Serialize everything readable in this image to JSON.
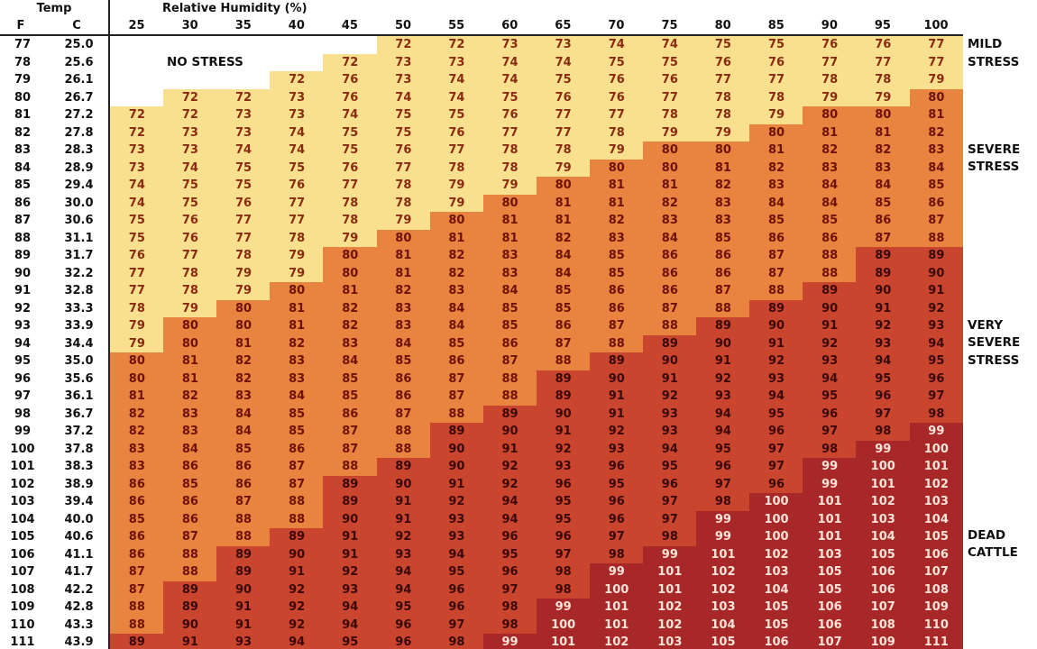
{
  "chart_data": {
    "type": "heatmap",
    "headers": {
      "temp": "Temp",
      "f": "F",
      "c": "C",
      "humidity": "Relative Humidity (%)"
    },
    "humidity": [
      25,
      30,
      35,
      40,
      45,
      50,
      55,
      60,
      65,
      70,
      75,
      80,
      85,
      90,
      95,
      100
    ],
    "temp_f": [
      77,
      78,
      79,
      80,
      81,
      82,
      83,
      84,
      85,
      86,
      87,
      88,
      89,
      90,
      91,
      92,
      93,
      94,
      95,
      96,
      97,
      98,
      99,
      100,
      101,
      102,
      103,
      104,
      105,
      106,
      107,
      108,
      109,
      110,
      111
    ],
    "temp_c": [
      "25.0",
      "25.6",
      "26.1",
      "26.7",
      "27.2",
      "27.8",
      "28.3",
      "28.9",
      "29.4",
      "30.0",
      "30.6",
      "31.1",
      "31.7",
      "32.2",
      "32.8",
      "33.3",
      "33.9",
      "34.4",
      "35.0",
      "35.6",
      "36.1",
      "36.7",
      "37.2",
      "37.8",
      "38.3",
      "38.9",
      "39.4",
      "40.0",
      "40.6",
      "41.1",
      "41.7",
      "42.2",
      "42.8",
      "43.3",
      "43.9"
    ],
    "values": [
      [
        null,
        null,
        null,
        null,
        null,
        72,
        72,
        73,
        73,
        74,
        74,
        75,
        75,
        76,
        76,
        77
      ],
      [
        null,
        null,
        null,
        null,
        72,
        73,
        73,
        74,
        74,
        75,
        75,
        76,
        76,
        77,
        77,
        77
      ],
      [
        null,
        null,
        null,
        72,
        76,
        73,
        74,
        74,
        75,
        76,
        76,
        77,
        77,
        78,
        78,
        79
      ],
      [
        null,
        72,
        72,
        73,
        76,
        74,
        74,
        75,
        76,
        76,
        77,
        78,
        78,
        79,
        79,
        80
      ],
      [
        72,
        72,
        73,
        73,
        74,
        75,
        75,
        76,
        77,
        77,
        78,
        78,
        79,
        80,
        80,
        81
      ],
      [
        72,
        73,
        73,
        74,
        75,
        75,
        76,
        77,
        77,
        78,
        79,
        79,
        80,
        81,
        81,
        82
      ],
      [
        73,
        73,
        74,
        74,
        75,
        76,
        77,
        78,
        78,
        79,
        80,
        80,
        81,
        82,
        82,
        83
      ],
      [
        73,
        74,
        75,
        75,
        76,
        77,
        78,
        78,
        79,
        80,
        80,
        81,
        82,
        83,
        83,
        84
      ],
      [
        74,
        75,
        75,
        76,
        77,
        78,
        79,
        79,
        80,
        81,
        81,
        82,
        83,
        84,
        84,
        85
      ],
      [
        74,
        75,
        76,
        77,
        78,
        78,
        79,
        80,
        81,
        81,
        82,
        83,
        84,
        84,
        85,
        86
      ],
      [
        75,
        76,
        77,
        77,
        78,
        79,
        80,
        81,
        81,
        82,
        83,
        83,
        85,
        85,
        86,
        87
      ],
      [
        75,
        76,
        77,
        78,
        79,
        80,
        81,
        81,
        82,
        83,
        84,
        85,
        86,
        86,
        87,
        88
      ],
      [
        76,
        77,
        78,
        79,
        80,
        81,
        82,
        83,
        84,
        85,
        86,
        86,
        87,
        88,
        89,
        89
      ],
      [
        77,
        78,
        79,
        79,
        80,
        81,
        82,
        83,
        84,
        85,
        86,
        86,
        87,
        88,
        89,
        90
      ],
      [
        77,
        78,
        79,
        80,
        81,
        82,
        83,
        84,
        85,
        86,
        86,
        87,
        88,
        89,
        90,
        91
      ],
      [
        78,
        79,
        80,
        81,
        82,
        83,
        84,
        85,
        85,
        86,
        87,
        88,
        89,
        90,
        91,
        92
      ],
      [
        79,
        80,
        80,
        81,
        82,
        83,
        84,
        85,
        86,
        87,
        88,
        89,
        90,
        91,
        92,
        93
      ],
      [
        79,
        80,
        81,
        82,
        83,
        84,
        85,
        86,
        87,
        88,
        89,
        90,
        91,
        92,
        93,
        94
      ],
      [
        80,
        81,
        82,
        83,
        84,
        85,
        86,
        87,
        88,
        89,
        90,
        91,
        92,
        93,
        94,
        95
      ],
      [
        80,
        81,
        82,
        83,
        85,
        86,
        87,
        88,
        89,
        90,
        91,
        92,
        93,
        94,
        95,
        96
      ],
      [
        81,
        82,
        83,
        84,
        85,
        86,
        87,
        88,
        89,
        91,
        92,
        93,
        94,
        95,
        96,
        97
      ],
      [
        82,
        83,
        84,
        85,
        86,
        87,
        88,
        89,
        90,
        91,
        93,
        94,
        95,
        96,
        97,
        98
      ],
      [
        82,
        83,
        84,
        85,
        87,
        88,
        89,
        90,
        91,
        92,
        93,
        94,
        96,
        97,
        98,
        99
      ],
      [
        83,
        84,
        85,
        86,
        87,
        88,
        90,
        91,
        92,
        93,
        94,
        95,
        97,
        98,
        99,
        100
      ],
      [
        83,
        86,
        86,
        87,
        88,
        89,
        90,
        92,
        93,
        96,
        95,
        96,
        97,
        99,
        100,
        101
      ],
      [
        86,
        85,
        86,
        87,
        89,
        90,
        91,
        92,
        96,
        95,
        96,
        97,
        96,
        99,
        101,
        102
      ],
      [
        86,
        86,
        87,
        88,
        89,
        91,
        92,
        94,
        95,
        96,
        97,
        98,
        100,
        101,
        102,
        103
      ],
      [
        85,
        86,
        88,
        88,
        90,
        91,
        93,
        94,
        95,
        96,
        97,
        99,
        100,
        101,
        103,
        104
      ],
      [
        86,
        87,
        88,
        89,
        91,
        92,
        93,
        96,
        96,
        97,
        98,
        99,
        100,
        101,
        104,
        105
      ],
      [
        86,
        88,
        89,
        90,
        91,
        93,
        94,
        95,
        97,
        98,
        99,
        101,
        102,
        103,
        105,
        106
      ],
      [
        87,
        88,
        89,
        91,
        92,
        94,
        95,
        96,
        98,
        99,
        101,
        102,
        103,
        105,
        106,
        107
      ],
      [
        87,
        89,
        90,
        92,
        93,
        94,
        96,
        97,
        98,
        100,
        101,
        102,
        104,
        105,
        106,
        108
      ],
      [
        88,
        89,
        91,
        92,
        94,
        95,
        96,
        98,
        99,
        101,
        102,
        103,
        105,
        106,
        107,
        109
      ],
      [
        88,
        90,
        91,
        92,
        94,
        96,
        97,
        98,
        100,
        101,
        102,
        104,
        105,
        106,
        108,
        110
      ],
      [
        89,
        91,
        93,
        94,
        95,
        96,
        98,
        99,
        101,
        102,
        103,
        105,
        106,
        107,
        109,
        111
      ]
    ],
    "zones": [
      {
        "label": "NO STRESS",
        "color": "#ffffff"
      },
      {
        "label": "MILD STRESS",
        "color": "#f8e08e"
      },
      {
        "label": "SEVERE STRESS",
        "color": "#e8843f"
      },
      {
        "label": "VERY SEVERE STRESS",
        "color": "#c9452e"
      },
      {
        "label": "DEAD CATTLE",
        "color": "#a8282a"
      }
    ],
    "no_stress_label": "NO STRESS",
    "legend_lines": {
      "mild": [
        "MILD",
        "STRESS"
      ],
      "severe": [
        "SEVERE",
        "STRESS"
      ],
      "very_severe": [
        "VERY",
        "SEVERE",
        "STRESS"
      ],
      "dead": [
        "DEAD",
        "CATTLE"
      ]
    }
  }
}
